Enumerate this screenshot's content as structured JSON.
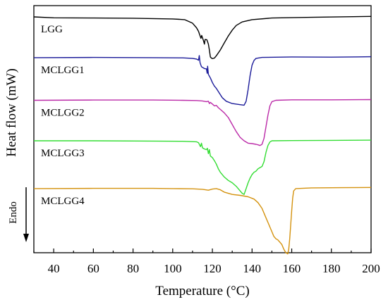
{
  "chart_data": {
    "type": "line",
    "title": "",
    "xlabel": "Temperature (°C)",
    "ylabel": "Heat flow (mW)",
    "xlim": [
      30,
      200
    ],
    "ylim": [
      0,
      100
    ],
    "x_ticks": [
      40,
      60,
      80,
      100,
      120,
      140,
      160,
      180,
      200
    ],
    "grid": false,
    "y_tick_labels": false,
    "annotation": {
      "text": "Endo",
      "direction": "down"
    },
    "series": [
      {
        "name": "LGG",
        "color": "#000000",
        "points": [
          [
            30,
            98.2
          ],
          [
            40,
            97.8
          ],
          [
            60,
            97.7
          ],
          [
            80,
            97.6
          ],
          [
            100,
            97.3
          ],
          [
            106,
            97.0
          ],
          [
            110,
            95.5
          ],
          [
            112,
            93.5
          ],
          [
            113,
            92.0
          ],
          [
            114.2,
            89.0
          ],
          [
            114.6,
            90.2
          ],
          [
            115.5,
            88.0
          ],
          [
            116,
            86.5
          ],
          [
            116.3,
            88.5
          ],
          [
            117.2,
            88.4
          ],
          [
            118,
            86.5
          ],
          [
            118.5,
            84.0
          ],
          [
            119,
            81.0
          ],
          [
            119.5,
            80.5
          ],
          [
            120,
            80.3
          ],
          [
            121,
            80.5
          ],
          [
            122,
            81.5
          ],
          [
            124,
            84.0
          ],
          [
            126,
            87.0
          ],
          [
            128,
            90.0
          ],
          [
            130,
            92.5
          ],
          [
            132,
            94.5
          ],
          [
            135,
            96.0
          ],
          [
            140,
            97.0
          ],
          [
            150,
            97.7
          ],
          [
            170,
            98.0
          ],
          [
            200,
            98.4
          ]
        ]
      },
      {
        "name": "MCLGG1",
        "color": "#1a1a99",
        "points": [
          [
            30,
            80.7
          ],
          [
            60,
            80.8
          ],
          [
            90,
            80.7
          ],
          [
            105,
            80.6
          ],
          [
            110,
            80.4
          ],
          [
            112,
            80.1
          ],
          [
            113,
            79.6
          ],
          [
            113.4,
            81.6
          ],
          [
            113.8,
            78.5
          ],
          [
            114.5,
            76.8
          ],
          [
            116,
            76.0
          ],
          [
            117,
            75.9
          ],
          [
            117.4,
            74.0
          ],
          [
            117.6,
            77.0
          ],
          [
            118,
            73.5
          ],
          [
            119,
            72.0
          ],
          [
            120,
            70.0
          ],
          [
            121,
            68.5
          ],
          [
            122,
            67.5
          ],
          [
            123.5,
            65.5
          ],
          [
            125,
            63.5
          ],
          [
            127,
            62.0
          ],
          [
            130,
            61.0
          ],
          [
            134,
            60.5
          ],
          [
            136,
            60.3
          ],
          [
            137,
            62.0
          ],
          [
            138,
            67.0
          ],
          [
            139,
            73.0
          ],
          [
            140,
            77.5
          ],
          [
            141,
            79.5
          ],
          [
            142,
            80.4
          ],
          [
            145,
            80.8
          ],
          [
            160,
            81.0
          ],
          [
            180,
            80.9
          ],
          [
            200,
            81.1
          ]
        ]
      },
      {
        "name": "MCLGG2",
        "color": "#bb2aa8",
        "points": [
          [
            30,
            62.4
          ],
          [
            60,
            62.5
          ],
          [
            90,
            62.5
          ],
          [
            105,
            62.4
          ],
          [
            112,
            62.3
          ],
          [
            115,
            62.1
          ],
          [
            117,
            61.8
          ],
          [
            118,
            62.0
          ],
          [
            118.5,
            61.0
          ],
          [
            119,
            61.5
          ],
          [
            120,
            60.8
          ],
          [
            121,
            60.0
          ],
          [
            122,
            60.2
          ],
          [
            123,
            59.2
          ],
          [
            124,
            58.5
          ],
          [
            126,
            57.0
          ],
          [
            128,
            55.0
          ],
          [
            130,
            52.0
          ],
          [
            132,
            49.0
          ],
          [
            134,
            46.5
          ],
          [
            136,
            45.0
          ],
          [
            138,
            44.0
          ],
          [
            140,
            43.8
          ],
          [
            142,
            43.5
          ],
          [
            143,
            43.3
          ],
          [
            144,
            43.0
          ],
          [
            145,
            43.5
          ],
          [
            146,
            46.0
          ],
          [
            147,
            51.0
          ],
          [
            148,
            56.0
          ],
          [
            149,
            60.0
          ],
          [
            150,
            61.8
          ],
          [
            152,
            62.4
          ],
          [
            160,
            62.6
          ],
          [
            180,
            62.6
          ],
          [
            200,
            62.7
          ]
        ]
      },
      {
        "name": "MCLGG3",
        "color": "#33dd33",
        "points": [
          [
            30,
            45.0
          ],
          [
            60,
            45.0
          ],
          [
            90,
            44.9
          ],
          [
            105,
            44.8
          ],
          [
            112,
            44.6
          ],
          [
            113,
            44.2
          ],
          [
            114,
            42.5
          ],
          [
            114.5,
            44.0
          ],
          [
            115,
            42.0
          ],
          [
            116,
            41.5
          ],
          [
            117,
            41.2
          ],
          [
            117.5,
            41.8
          ],
          [
            118,
            39.5
          ],
          [
            118.5,
            41.2
          ],
          [
            119,
            38.5
          ],
          [
            120,
            37.8
          ],
          [
            121,
            36.5
          ],
          [
            122,
            35.0
          ],
          [
            123,
            33.0
          ],
          [
            124,
            31.5
          ],
          [
            126,
            29.5
          ],
          [
            128,
            28.0
          ],
          [
            130,
            27.0
          ],
          [
            132,
            25.5
          ],
          [
            134,
            23.5
          ],
          [
            135,
            22.5
          ],
          [
            136,
            22.0
          ],
          [
            137,
            24.5
          ],
          [
            138,
            27.0
          ],
          [
            139,
            29.0
          ],
          [
            140,
            30.5
          ],
          [
            141,
            31.5
          ],
          [
            142,
            32.0
          ],
          [
            143,
            33.0
          ],
          [
            144,
            33.5
          ],
          [
            145,
            34.0
          ],
          [
            146,
            36.0
          ],
          [
            147,
            40.0
          ],
          [
            148,
            43.0
          ],
          [
            149,
            44.5
          ],
          [
            150,
            45.0
          ],
          [
            160,
            45.1
          ],
          [
            180,
            45.2
          ],
          [
            200,
            45.3
          ]
        ]
      },
      {
        "name": "MCLGG4",
        "color": "#d4920e",
        "points": [
          [
            30,
            24.5
          ],
          [
            60,
            24.6
          ],
          [
            90,
            24.6
          ],
          [
            100,
            24.5
          ],
          [
            110,
            24.4
          ],
          [
            115,
            24.2
          ],
          [
            118,
            23.8
          ],
          [
            120,
            24.3
          ],
          [
            122,
            24.5
          ],
          [
            124,
            24.0
          ],
          [
            126,
            23.0
          ],
          [
            130,
            22.0
          ],
          [
            134,
            21.6
          ],
          [
            138,
            21.0
          ],
          [
            141,
            20.0
          ],
          [
            143,
            18.5
          ],
          [
            145,
            16.0
          ],
          [
            147,
            12.0
          ],
          [
            148,
            10.0
          ],
          [
            149,
            8.0
          ],
          [
            150,
            6.0
          ],
          [
            151,
            4.0
          ],
          [
            152,
            3.0
          ],
          [
            153,
            2.5
          ],
          [
            154,
            1.5
          ],
          [
            155,
            0.5
          ],
          [
            156,
            -1.5
          ],
          [
            157,
            -3.0
          ],
          [
            158,
            -3.5
          ],
          [
            158.5,
            -1.5
          ],
          [
            159,
            3.0
          ],
          [
            159.5,
            9.0
          ],
          [
            160,
            15.0
          ],
          [
            160.5,
            20.5
          ],
          [
            161,
            23.5
          ],
          [
            162,
            24.5
          ],
          [
            170,
            24.8
          ],
          [
            185,
            24.9
          ],
          [
            200,
            25.0
          ]
        ]
      }
    ]
  }
}
